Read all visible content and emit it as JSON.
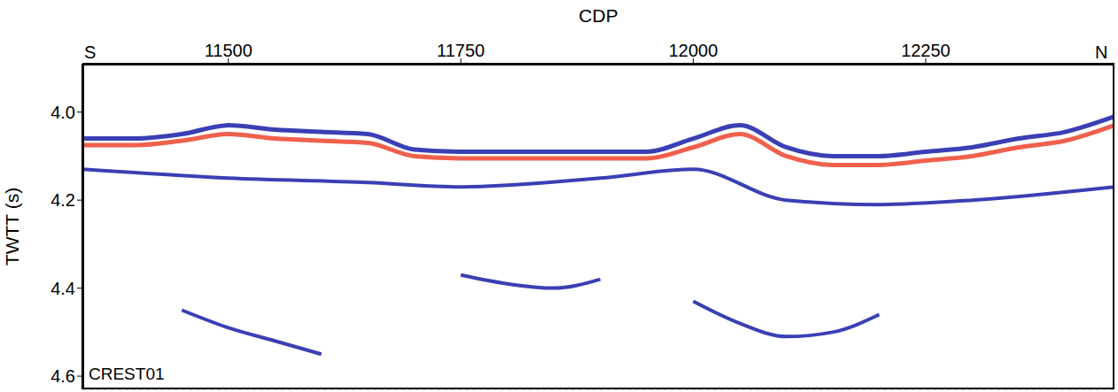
{
  "chart_data": {
    "type": "line",
    "x_label": "CDP",
    "y_label": "TWTT (s)",
    "annotations": [
      "S",
      "N",
      "CREST01"
    ],
    "xlim": [
      11343,
      12453
    ],
    "xticks": [
      11500,
      11750,
      12000,
      12250
    ],
    "ylim": [
      3.89,
      4.63
    ],
    "yticks": [
      {
        "value": 4,
        "label": "4.0"
      },
      {
        "value": 4.2,
        "label": "4.2"
      },
      {
        "value": 4.4,
        "label": "4.4"
      },
      {
        "value": 4.6,
        "label": "4.6"
      }
    ],
    "grid": true,
    "series": [
      {
        "color": "#3b3fb5",
        "x": [
          11343,
          11400,
          11450,
          11500,
          11550,
          11600,
          11650,
          11700,
          11750,
          11800,
          11850,
          11900,
          11950,
          12000,
          12050,
          12100,
          12150,
          12200,
          12250,
          12300,
          12350,
          12400,
          12453
        ],
        "values": [
          4.06,
          4.06,
          4.05,
          4.03,
          4.04,
          4.045,
          4.05,
          4.085,
          4.09,
          4.09,
          4.09,
          4.09,
          4.09,
          4.06,
          4.03,
          4.08,
          4.1,
          4.1,
          4.09,
          4.08,
          4.06,
          4.045,
          4.01
        ]
      },
      {
        "color": "#f0604c",
        "x": [
          11343,
          11400,
          11450,
          11500,
          11550,
          11600,
          11650,
          11700,
          11750,
          11800,
          11850,
          11900,
          11950,
          12000,
          12050,
          12100,
          12150,
          12200,
          12250,
          12300,
          12350,
          12400,
          12453
        ],
        "values": [
          4.075,
          4.075,
          4.065,
          4.05,
          4.06,
          4.065,
          4.07,
          4.1,
          4.105,
          4.105,
          4.105,
          4.105,
          4.105,
          4.08,
          4.05,
          4.1,
          4.12,
          4.12,
          4.11,
          4.1,
          4.08,
          4.065,
          4.03
        ]
      },
      {
        "color": "#3b3fb5",
        "x": [
          11343,
          11500,
          11650,
          11750,
          11900,
          12000,
          12100,
          12200,
          12300,
          12453
        ],
        "values": [
          4.13,
          4.15,
          4.16,
          4.17,
          4.15,
          4.13,
          4.2,
          4.21,
          4.2,
          4.17
        ]
      },
      {
        "color": "#3b3fb5",
        "x": [
          11750,
          11800,
          11850,
          11900
        ],
        "values": [
          4.37,
          4.39,
          4.4,
          4.38
        ]
      },
      {
        "color": "#3b3fb5",
        "x": [
          11450,
          11500,
          11550,
          11600
        ],
        "values": [
          4.45,
          4.49,
          4.52,
          4.55
        ]
      },
      {
        "color": "#3b3fb5",
        "x": [
          12000,
          12050,
          12100,
          12150,
          12200
        ],
        "values": [
          4.43,
          4.48,
          4.51,
          4.5,
          4.46
        ]
      }
    ]
  }
}
